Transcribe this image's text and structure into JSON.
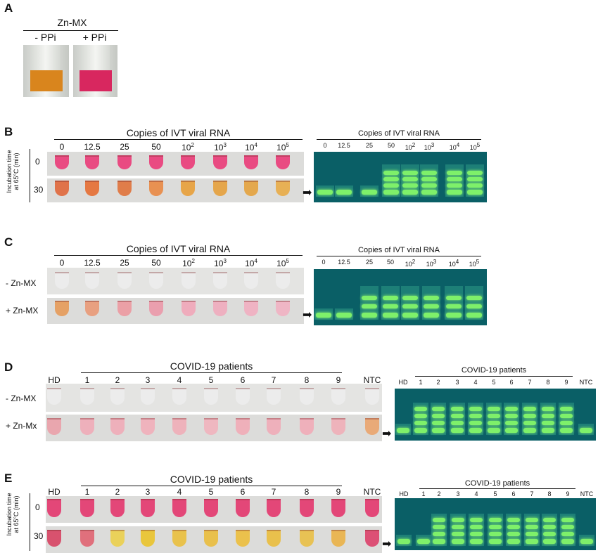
{
  "panels": {
    "A": {
      "label": "A",
      "title": "Zn-MX",
      "conditions": [
        "- PPi",
        "+ PPi"
      ],
      "colors": [
        "#d9851d",
        "#d8275f"
      ]
    },
    "B": {
      "label": "B",
      "header": "Copies of IVT viral RNA",
      "gel_header": "Copies of IVT viral RNA",
      "columns": [
        "0",
        "12.5",
        "25",
        "50",
        "10",
        "10",
        "10",
        "10"
      ],
      "column_exponents": [
        "",
        "",
        "",
        "",
        "2",
        "3",
        "4",
        "5"
      ],
      "row_axis_title": "Incubation time",
      "row_axis_subtitle": "at 65°C (min)",
      "rows": [
        "0",
        "30"
      ],
      "row_colors": [
        [
          "#e94b82",
          "#e94b82",
          "#e94b82",
          "#e94b82",
          "#e94b82",
          "#e94b82",
          "#e94b82",
          "#e94b82"
        ],
        [
          "#e0734a",
          "#e57842",
          "#e07d4a",
          "#e89152",
          "#e7a548",
          "#e5a64b",
          "#e4a84d",
          "#e7b055"
        ]
      ],
      "gel_bands": [
        1,
        1,
        1,
        4,
        4,
        4,
        4,
        4
      ]
    },
    "C": {
      "label": "C",
      "header": "Copies of IVT viral RNA",
      "gel_header": "Copies of IVT viral RNA",
      "columns": [
        "0",
        "12.5",
        "25",
        "50",
        "10",
        "10",
        "10",
        "10"
      ],
      "column_exponents": [
        "",
        "",
        "",
        "",
        "2",
        "3",
        "4",
        "5"
      ],
      "rows": [
        "- Zn-MX",
        "+ Zn-MX"
      ],
      "row_colors": [
        [
          "#ececec",
          "#ececec",
          "#ececec",
          "#ececec",
          "#ececec",
          "#ececec",
          "#ececec",
          "#ececec"
        ],
        [
          "#e5a165",
          "#e8a080",
          "#eba0a6",
          "#ea9fae",
          "#efacbc",
          "#eeb0c0",
          "#efb3c3",
          "#efb6c5"
        ]
      ],
      "gel_bands": [
        1,
        1,
        3,
        3,
        3,
        3,
        3,
        3
      ]
    },
    "D": {
      "label": "D",
      "header": "COVID-19 patients",
      "gel_header": "COVID-19 patients",
      "columns": [
        "HD",
        "1",
        "2",
        "3",
        "4",
        "5",
        "6",
        "7",
        "8",
        "9",
        "NTC"
      ],
      "rows": [
        "- Zn-MX",
        "+ Zn-Mx"
      ],
      "row_colors": [
        [
          "#ececec",
          "#ececec",
          "#ececec",
          "#ececec",
          "#ececec",
          "#ececec",
          "#ececec",
          "#ececec",
          "#ececec",
          "#ececec",
          "#ececec"
        ],
        [
          "#e9a6ae",
          "#eeb0bb",
          "#eeb0bb",
          "#efb3bd",
          "#eeb2bb",
          "#efb7c0",
          "#efb0ba",
          "#eeb0bb",
          "#efb0bb",
          "#eeb3bb",
          "#e9aa78"
        ]
      ],
      "gel_bands": [
        1,
        4,
        4,
        4,
        4,
        4,
        4,
        4,
        4,
        4,
        1
      ]
    },
    "E": {
      "label": "E",
      "header": "COVID-19 patients",
      "gel_header": "COVID-19 patients",
      "columns": [
        "HD",
        "1",
        "2",
        "3",
        "4",
        "5",
        "6",
        "7",
        "8",
        "9",
        "NTC"
      ],
      "row_axis_title": "Incubation time",
      "row_axis_subtitle": "at 65°C (min)",
      "rows": [
        "0",
        "30"
      ],
      "row_colors": [
        [
          "#e34778",
          "#e34778",
          "#e34778",
          "#e34778",
          "#e34778",
          "#e34778",
          "#e34778",
          "#e34778",
          "#e34778",
          "#e34778",
          "#e34778"
        ],
        [
          "#d8526e",
          "#e0707c",
          "#ead15a",
          "#e9c63c",
          "#e9c24c",
          "#e9c04c",
          "#ebc14c",
          "#e9c04c",
          "#e8c254",
          "#e9b655",
          "#dc5075"
        ]
      ],
      "gel_bands": [
        1,
        1,
        4,
        4,
        4,
        4,
        4,
        4,
        4,
        4,
        1
      ]
    }
  }
}
